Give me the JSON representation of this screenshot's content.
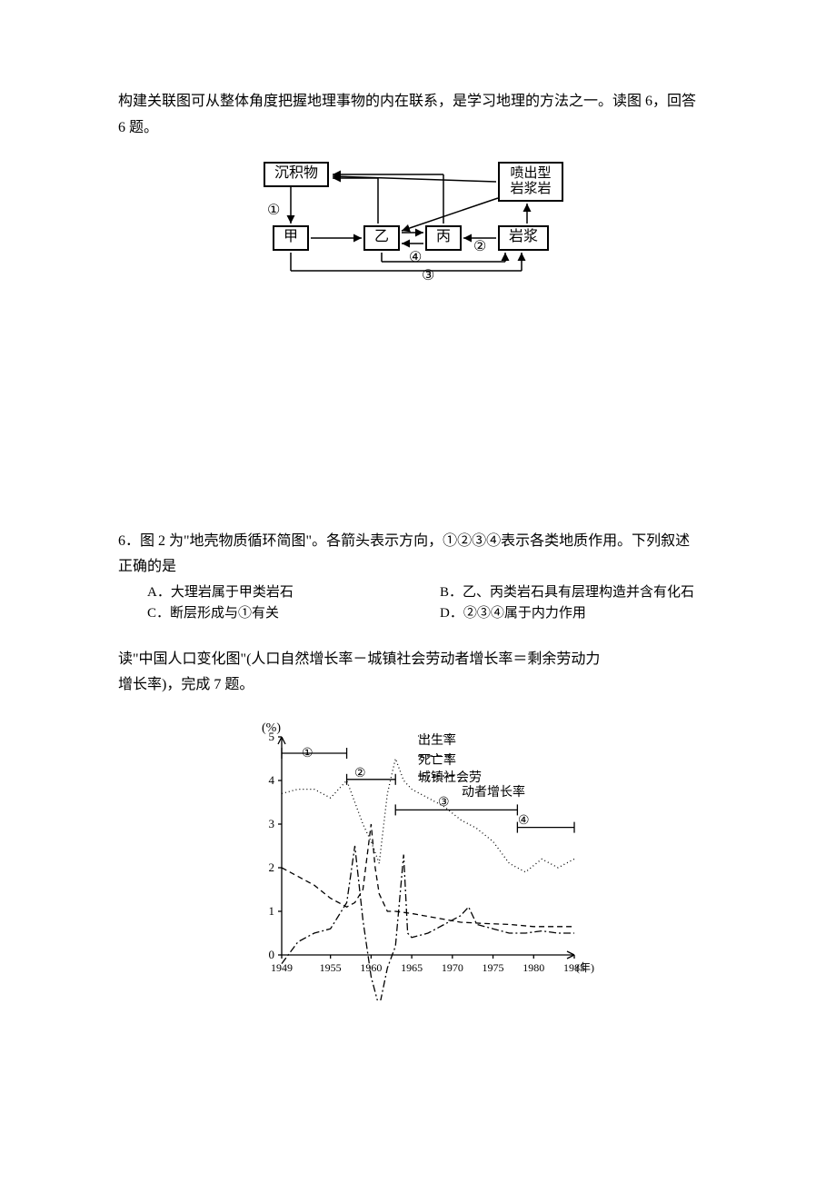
{
  "intro1": {
    "line1": "构建关联图可从整体角度把握地理事物的内在联系，是学习地理的方法之一。读图 6，回答",
    "line2": "6 题。"
  },
  "linkDiagram": {
    "nodes": {
      "sediment": "沉积物",
      "extrusive_top": "喷出型",
      "extrusive_bottom": "岩浆岩",
      "jia": "甲",
      "yi": "乙",
      "bing": "丙",
      "magma": "岩浆"
    },
    "labels": {
      "c1": "①",
      "c2": "②",
      "c3": "③",
      "c4": "④"
    },
    "stroke": "#000000"
  },
  "q6": {
    "stem_l1": "6．图 2 为\"地壳物质循环简图\"。各箭头表示方向，①②③④表示各类地质作用。下列叙述",
    "stem_l2": "正确的是",
    "optA": "A．大理岩属于甲类岩石",
    "optB": "B．乙、丙类岩石具有层理构造并含有化石",
    "optC": "C．断层形成与①有关",
    "optD": "D．②③④属于内力作用"
  },
  "intro2": {
    "line1": "读\"中国人口变化图\"(人口自然增长率－城镇社会劳动者增长率＝剩余劳动力",
    "line2": "增长率)，完成 7 题。"
  },
  "lineChart": {
    "type": "line",
    "y_unit": "(%)",
    "ylim": [
      0,
      5
    ],
    "yticks": [
      0,
      1,
      2,
      3,
      4,
      5
    ],
    "xticks": [
      "1949",
      "1955",
      "1960",
      "1965",
      "1970",
      "1975",
      "1980",
      "1985"
    ],
    "xsuffix": "(年)",
    "legend": {
      "birth": "出生率",
      "death": "死亡率",
      "urban_l1": "城镇社会劳",
      "urban_l2": "动者增长率"
    },
    "periods": {
      "p1": "①",
      "p2": "②",
      "p3": "③",
      "p4": "④"
    },
    "colors": {
      "axis": "#000000",
      "birth": "#000000",
      "death": "#000000",
      "urban": "#000000",
      "grid": "#000000",
      "background": "#ffffff"
    },
    "birth_style": "dotted",
    "death_style": "dashed",
    "urban_style": "dashdot",
    "birth_points": [
      [
        1949,
        3.7
      ],
      [
        1951,
        3.8
      ],
      [
        1953,
        3.8
      ],
      [
        1955,
        3.6
      ],
      [
        1957,
        4.0
      ],
      [
        1959,
        3.0
      ],
      [
        1960,
        2.6
      ],
      [
        1961,
        2.1
      ],
      [
        1962,
        3.7
      ],
      [
        1963,
        4.5
      ],
      [
        1964,
        4.0
      ],
      [
        1965,
        3.8
      ],
      [
        1967,
        3.6
      ],
      [
        1969,
        3.4
      ],
      [
        1971,
        3.1
      ],
      [
        1973,
        2.9
      ],
      [
        1975,
        2.6
      ],
      [
        1977,
        2.1
      ],
      [
        1979,
        1.9
      ],
      [
        1981,
        2.2
      ],
      [
        1983,
        2.0
      ],
      [
        1985,
        2.2
      ]
    ],
    "death_points": [
      [
        1949,
        2.0
      ],
      [
        1951,
        1.8
      ],
      [
        1953,
        1.6
      ],
      [
        1955,
        1.3
      ],
      [
        1957,
        1.1
      ],
      [
        1958,
        1.2
      ],
      [
        1959,
        1.5
      ],
      [
        1960,
        3.0
      ],
      [
        1960.5,
        2.0
      ],
      [
        1961,
        1.4
      ],
      [
        1962,
        1.0
      ],
      [
        1963,
        1.0
      ],
      [
        1965,
        0.95
      ],
      [
        1968,
        0.85
      ],
      [
        1971,
        0.75
      ],
      [
        1974,
        0.72
      ],
      [
        1977,
        0.7
      ],
      [
        1980,
        0.65
      ],
      [
        1983,
        0.65
      ],
      [
        1985,
        0.65
      ]
    ],
    "urban_points": [
      [
        1949,
        -0.2
      ],
      [
        1951,
        0.3
      ],
      [
        1953,
        0.5
      ],
      [
        1955,
        0.6
      ],
      [
        1957,
        1.2
      ],
      [
        1958,
        2.5
      ],
      [
        1959,
        0.8
      ],
      [
        1960,
        -0.5
      ],
      [
        1961,
        -1.2
      ],
      [
        1962,
        -0.3
      ],
      [
        1963,
        0.2
      ],
      [
        1964,
        2.3
      ],
      [
        1964.5,
        0.5
      ],
      [
        1965,
        0.4
      ],
      [
        1967,
        0.5
      ],
      [
        1969,
        0.7
      ],
      [
        1971,
        0.9
      ],
      [
        1972,
        1.1
      ],
      [
        1973,
        0.7
      ],
      [
        1975,
        0.6
      ],
      [
        1977,
        0.5
      ],
      [
        1979,
        0.5
      ],
      [
        1981,
        0.55
      ],
      [
        1983,
        0.5
      ],
      [
        1985,
        0.5
      ]
    ]
  }
}
